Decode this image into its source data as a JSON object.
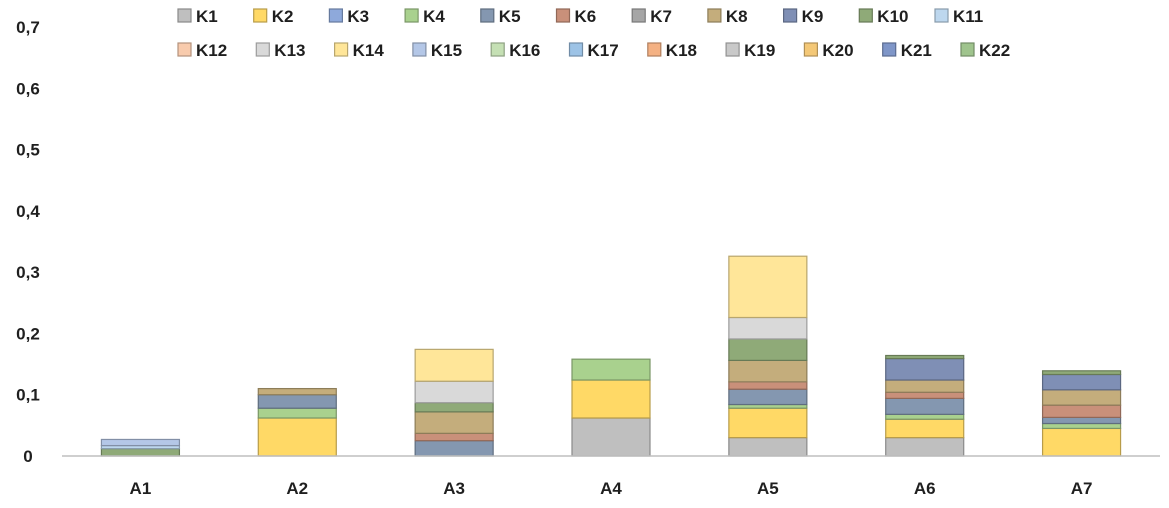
{
  "chart_data": {
    "type": "bar",
    "stacked": true,
    "categories": [
      "A1",
      "A2",
      "A3",
      "A4",
      "A5",
      "A6",
      "A7"
    ],
    "ylim": [
      0,
      0.7
    ],
    "yticks": [
      "0",
      "0,1",
      "0,2",
      "0,3",
      "0,4",
      "0,5",
      "0,6",
      "0,7"
    ],
    "ytick_values": [
      0,
      0.1,
      0.2,
      0.3,
      0.4,
      0.5,
      0.6,
      0.7
    ],
    "grid": false,
    "legend_position": "top",
    "series": [
      {
        "name": "K1",
        "color": "#bfbfbf",
        "values": [
          0.0,
          0.0,
          0.0,
          0.062,
          0.03,
          0.03,
          0.0
        ]
      },
      {
        "name": "K2",
        "color": "#ffd966",
        "values": [
          0.0,
          0.062,
          0.0,
          0.062,
          0.048,
          0.03,
          0.045
        ]
      },
      {
        "name": "K3",
        "color": "#8ea9db",
        "values": [
          0.0,
          0.0,
          0.0,
          0.0,
          0.0,
          0.0,
          0.0
        ]
      },
      {
        "name": "K4",
        "color": "#a9d18e",
        "values": [
          0.0,
          0.016,
          0.0,
          0.034,
          0.006,
          0.008,
          0.008
        ]
      },
      {
        "name": "K5",
        "color": "#8497b0",
        "values": [
          0.0,
          0.022,
          0.025,
          0.0,
          0.025,
          0.026,
          0.01
        ]
      },
      {
        "name": "K6",
        "color": "#c9907a",
        "values": [
          0.0,
          0.0,
          0.012,
          0.0,
          0.012,
          0.01,
          0.02
        ]
      },
      {
        "name": "K7",
        "color": "#a6a6a6",
        "values": [
          0.0,
          0.0,
          0.0,
          0.0,
          0.0,
          0.0,
          0.0
        ]
      },
      {
        "name": "K8",
        "color": "#c4ad7c",
        "values": [
          0.0,
          0.01,
          0.035,
          0.0,
          0.035,
          0.02,
          0.025
        ]
      },
      {
        "name": "K9",
        "color": "#7f8fb5",
        "values": [
          0.0,
          0.0,
          0.0,
          0.0,
          0.0,
          0.035,
          0.025
        ]
      },
      {
        "name": "K10",
        "color": "#8faa78",
        "values": [
          0.012,
          0.0,
          0.015,
          0.0,
          0.035,
          0.005,
          0.006
        ]
      },
      {
        "name": "K11",
        "color": "#bdd7ee",
        "values": [
          0.005,
          0.0,
          0.0,
          0.0,
          0.0,
          0.0,
          0.0
        ]
      },
      {
        "name": "K12",
        "color": "#f8cbad",
        "values": [
          0.0,
          0.0,
          0.0,
          0.0,
          0.0,
          0.0,
          0.0
        ]
      },
      {
        "name": "K13",
        "color": "#d9d9d9",
        "values": [
          0.0,
          0.0,
          0.035,
          0.0,
          0.035,
          0.0,
          0.0
        ]
      },
      {
        "name": "K14",
        "color": "#ffe699",
        "values": [
          0.0,
          0.0,
          0.052,
          0.0,
          0.1,
          0.0,
          0.0
        ]
      },
      {
        "name": "K15",
        "color": "#b4c7e7",
        "values": [
          0.01,
          0.0,
          0.0,
          0.0,
          0.0,
          0.0,
          0.0
        ]
      },
      {
        "name": "K16",
        "color": "#c5e0b4",
        "values": [
          0.0,
          0.0,
          0.0,
          0.0,
          0.0,
          0.0,
          0.0
        ]
      },
      {
        "name": "K17",
        "color": "#9dc3e6",
        "values": [
          0.0,
          0.0,
          0.0,
          0.0,
          0.0,
          0.0,
          0.0
        ]
      },
      {
        "name": "K18",
        "color": "#f4b183",
        "values": [
          0.0,
          0.0,
          0.0,
          0.0,
          0.0,
          0.0,
          0.0
        ]
      },
      {
        "name": "K19",
        "color": "#c9c9c9",
        "values": [
          0.0,
          0.0,
          0.0,
          0.0,
          0.0,
          0.0,
          0.0
        ]
      },
      {
        "name": "K20",
        "color": "#f4c877",
        "values": [
          0.0,
          0.0,
          0.0,
          0.0,
          0.0,
          0.0,
          0.0
        ]
      },
      {
        "name": "K21",
        "color": "#7f96c8",
        "values": [
          0.0,
          0.0,
          0.0,
          0.0,
          0.0,
          0.0,
          0.0
        ]
      },
      {
        "name": "K22",
        "color": "#9fc48d",
        "values": [
          0.0,
          0.0,
          0.0,
          0.0,
          0.0,
          0.0,
          0.0
        ]
      }
    ]
  }
}
